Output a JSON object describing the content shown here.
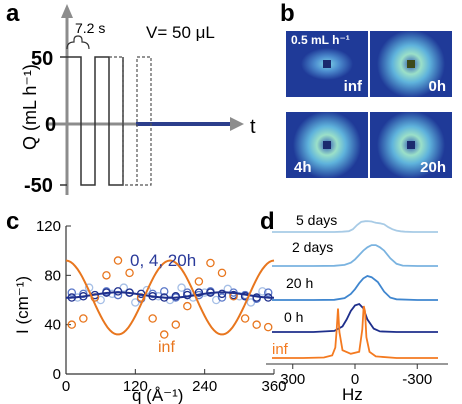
{
  "panels": {
    "a": {
      "letter": "a",
      "y_axis_label": "Q (mL h⁻¹)",
      "x_axis_label": "t",
      "y_ticks": [
        "50",
        "0",
        "-50"
      ],
      "period_label": "7.2 s",
      "volume_label": "V= 50 μL",
      "colors": {
        "axis": "#8c8c8c",
        "baseline": "#2c3e8c",
        "wave": "#333333"
      }
    },
    "b": {
      "letter": "b",
      "tiles": [
        {
          "sub_label": "0.5 mL h⁻¹",
          "label": "inf",
          "style": "anisotropic"
        },
        {
          "label": "0h",
          "style": "ring"
        },
        {
          "label": "4h",
          "style": "ring"
        },
        {
          "label": "20h",
          "style": "ring"
        }
      ]
    },
    "c": {
      "letter": "c",
      "series_label": "0, 4, 20h",
      "inf_label": "inf"
    },
    "d": {
      "letter": "d",
      "trace_labels": [
        "5 days",
        "2 days",
        "20 h",
        "0 h",
        "inf"
      ],
      "x_ticks": [
        "300",
        "0",
        "-300"
      ],
      "xlabel": "Hz"
    }
  },
  "chart_data": [
    {
      "type": "scatter",
      "panel": "c",
      "xlabel": "q (Å⁻¹)",
      "ylabel": "I (cm⁻¹)",
      "xlim": [
        0,
        360
      ],
      "ylim": [
        0,
        120
      ],
      "x_ticks": [
        0,
        120,
        240,
        360
      ],
      "y_ticks": [
        0,
        40,
        80,
        120
      ],
      "series": [
        {
          "color": "#e8761e",
          "x": [
            10,
            30,
            50,
            70,
            90,
            110,
            130,
            150,
            170,
            190,
            210,
            230,
            250,
            270,
            290,
            310,
            330,
            350
          ],
          "y": [
            40,
            45,
            62,
            80,
            92,
            82,
            62,
            45,
            32,
            40,
            55,
            75,
            90,
            82,
            63,
            45,
            40,
            38
          ]
        },
        {
          "color": "#1e2f8c",
          "x": [
            10,
            30,
            50,
            70,
            90,
            110,
            130,
            150,
            170,
            190,
            210,
            230,
            250,
            270,
            290,
            310,
            330,
            350
          ],
          "y": [
            62,
            63,
            64,
            66,
            67,
            66,
            65,
            63,
            62,
            63,
            64,
            66,
            66,
            65,
            64,
            63,
            62,
            62
          ]
        },
        {
          "color": "#5b78c9",
          "x": [
            10,
            30,
            50,
            70,
            90,
            110,
            130,
            150,
            170,
            190,
            210,
            230,
            250,
            270,
            290,
            310,
            330,
            350
          ],
          "y": [
            66,
            65,
            62,
            67,
            64,
            66,
            61,
            65,
            67,
            62,
            66,
            64,
            67,
            62,
            66,
            64,
            61,
            66
          ]
        },
        {
          "color": "#a6bfe6",
          "x": [
            20,
            40,
            60,
            80,
            100,
            120,
            140,
            160,
            180,
            200,
            220,
            240,
            260,
            280,
            300,
            320,
            340
          ],
          "y": [
            62,
            70,
            60,
            65,
            70,
            58,
            68,
            63,
            60,
            70,
            62,
            66,
            60,
            69,
            63,
            58,
            67
          ]
        }
      ]
    },
    {
      "type": "line",
      "panel": "d",
      "xlabel": "Hz",
      "xlim": [
        400,
        -400
      ],
      "x_ticks": [
        300,
        0,
        -300
      ],
      "series": [
        {
          "name": "5 days",
          "color": "#a8cbe6",
          "x": [
            -400,
            -330,
            -280,
            -240,
            -220,
            -200,
            -180,
            -160,
            -140,
            -120,
            -100,
            -90,
            -80,
            -60,
            -50,
            -30,
            -10,
            10,
            30,
            60,
            100,
            200,
            300,
            400
          ],
          "y": [
            0,
            0,
            0,
            0.02,
            0.05,
            0.1,
            0.2,
            0.35,
            0.55,
            0.62,
            0.66,
            0.7,
            0.75,
            0.78,
            0.77,
            0.72,
            0.5,
            0.2,
            0.06,
            0.02,
            0,
            0,
            0,
            0
          ]
        },
        {
          "name": "2 days",
          "color": "#7ab3e0",
          "x": [
            -400,
            -300,
            -230,
            -200,
            -170,
            -140,
            -120,
            -100,
            -80,
            -60,
            -40,
            -20,
            0,
            20,
            50,
            100,
            200,
            400
          ],
          "y": [
            0,
            0,
            0.02,
            0.1,
            0.35,
            0.7,
            0.85,
            0.95,
            0.95,
            0.85,
            0.7,
            0.5,
            0.3,
            0.15,
            0.05,
            0.01,
            0,
            0
          ]
        },
        {
          "name": "20 h",
          "color": "#3f86cf",
          "x": [
            -400,
            -300,
            -200,
            -170,
            -140,
            -110,
            -80,
            -60,
            -40,
            -20,
            0,
            20,
            50,
            100,
            200,
            400
          ],
          "y": [
            0,
            0,
            0.03,
            0.1,
            0.35,
            0.75,
            0.95,
            1.0,
            0.9,
            0.7,
            0.45,
            0.25,
            0.08,
            0.01,
            0,
            0
          ]
        },
        {
          "name": "0 h",
          "color": "#1e2f8c",
          "x": [
            -400,
            -200,
            -120,
            -90,
            -60,
            -40,
            -20,
            0,
            20,
            40,
            60,
            100,
            200,
            400
          ],
          "y": [
            0,
            0,
            0.02,
            0.12,
            0.45,
            0.85,
            1.0,
            0.95,
            0.75,
            0.45,
            0.2,
            0.04,
            0,
            0
          ]
        },
        {
          "name": "inf",
          "color": "#f47a20",
          "x": [
            -400,
            -200,
            -100,
            -70,
            -55,
            -48,
            -42,
            -35,
            -20,
            20,
            60,
            75,
            82,
            88,
            95,
            110,
            150,
            250,
            400
          ],
          "y": [
            0,
            0,
            0.03,
            0.12,
            0.4,
            0.9,
            1.0,
            0.55,
            0.12,
            0.08,
            0.15,
            0.5,
            0.95,
            0.55,
            0.2,
            0.05,
            0.01,
            0,
            0
          ]
        }
      ]
    }
  ]
}
